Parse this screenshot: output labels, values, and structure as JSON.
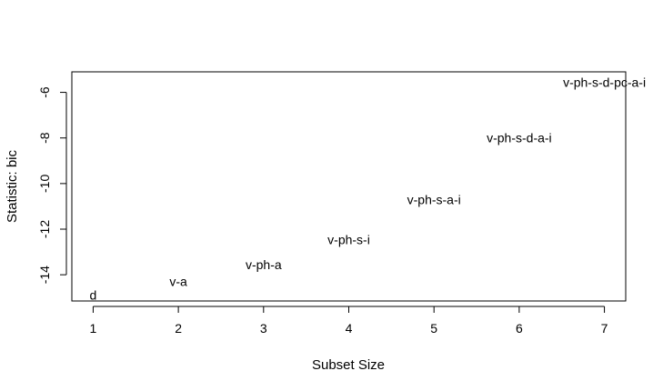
{
  "chart_data": {
    "type": "scatter",
    "title": "",
    "xlabel": "Subset Size",
    "ylabel": "Statistic: bic",
    "xlim": [
      0.75,
      7.25
    ],
    "ylim": [
      -15.15,
      -5.1
    ],
    "x_ticks": [
      "1",
      "2",
      "3",
      "4",
      "5",
      "6",
      "7"
    ],
    "y_ticks": [
      "-14",
      "-12",
      "-10",
      "-8",
      "-6"
    ],
    "grid": false,
    "points": [
      {
        "x": 1,
        "y": -14.9,
        "label": "d"
      },
      {
        "x": 2,
        "y": -14.3,
        "label": "v-a"
      },
      {
        "x": 3,
        "y": -13.55,
        "label": "v-ph-a"
      },
      {
        "x": 4,
        "y": -12.45,
        "label": "v-ph-s-i"
      },
      {
        "x": 5,
        "y": -10.7,
        "label": "v-ph-s-a-i"
      },
      {
        "x": 6,
        "y": -8.0,
        "label": "v-ph-s-d-a-i"
      },
      {
        "x": 7,
        "y": -5.55,
        "label": "v-ph-s-d-pc-a-i"
      }
    ]
  }
}
